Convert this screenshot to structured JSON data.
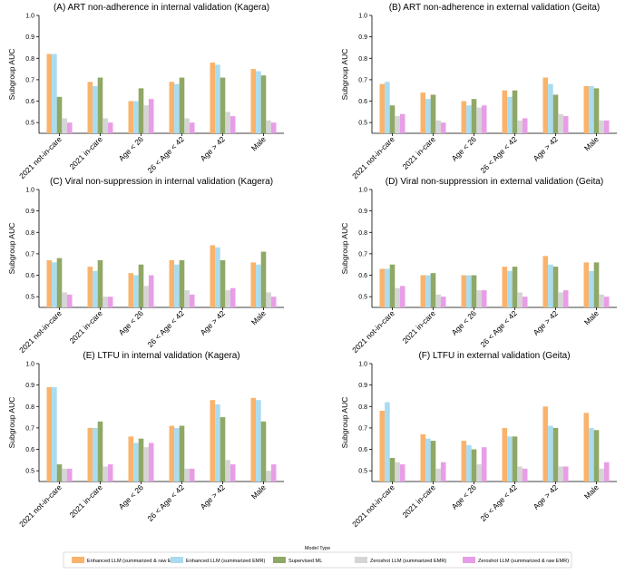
{
  "figure": {
    "legend_title": "Model Type",
    "legend_position": "bottom-center"
  },
  "colors": {
    "enhanced_raw": "#f9b36c",
    "enhanced_summ": "#a9dcf0",
    "supervised": "#8fa866",
    "zeroshot_summ": "#d5d5d5",
    "zeroshot_raw": "#e89ee6"
  },
  "series_meta": [
    {
      "name": "Enhanced LLM (summarized & raw EMR)",
      "color_key": "enhanced_raw"
    },
    {
      "name": "Enhanced LLM (summarized EMR)",
      "color_key": "enhanced_summ"
    },
    {
      "name": "Supervised ML",
      "color_key": "supervised"
    },
    {
      "name": "Zeroshot LLM (summarized EMR)",
      "color_key": "zeroshot_summ"
    },
    {
      "name": "Zeroshot LLM (summarized & raw EMR)",
      "color_key": "zeroshot_raw"
    }
  ],
  "chart_data": [
    {
      "type": "bar",
      "title": "(A) ART non-adherence in internal validation (Kagera)",
      "xlabel": "",
      "ylabel": "Subgroup AUC",
      "ylim": [
        0.45,
        1.0
      ],
      "yticks": [
        0.5,
        0.6,
        0.7,
        0.8,
        0.9,
        1.0
      ],
      "yticklabels": [
        "0.5",
        "0.6",
        "0.7",
        "0.8",
        "0.9",
        "1.0"
      ],
      "categories": [
        "2021 not-in-care",
        "2021 in-care",
        "Age < 26",
        "26 < Age < 42",
        "Age > 42",
        "Male"
      ],
      "series": [
        {
          "name": "Enhanced LLM (summarized & raw EMR)",
          "values": [
            0.82,
            0.69,
            0.6,
            0.69,
            0.78,
            0.75
          ]
        },
        {
          "name": "Enhanced LLM (summarized EMR)",
          "values": [
            0.82,
            0.67,
            0.6,
            0.68,
            0.77,
            0.74
          ]
        },
        {
          "name": "Supervised ML",
          "values": [
            0.62,
            0.71,
            0.66,
            0.71,
            0.71,
            0.72
          ]
        },
        {
          "name": "Zeroshot LLM (summarized EMR)",
          "values": [
            0.52,
            0.52,
            0.58,
            0.52,
            0.55,
            0.51
          ]
        },
        {
          "name": "Zeroshot LLM (summarized & raw EMR)",
          "values": [
            0.5,
            0.5,
            0.61,
            0.5,
            0.53,
            0.5
          ]
        }
      ]
    },
    {
      "type": "bar",
      "title": "(B) ART non-adherence in external validation (Geita)",
      "xlabel": "",
      "ylabel": "Subgroup AUC",
      "ylim": [
        0.45,
        1.0
      ],
      "yticks": [
        0.5,
        0.6,
        0.7,
        0.8,
        0.9,
        1.0
      ],
      "yticklabels": [
        "0.5",
        "0.6",
        "0.7",
        "0.8",
        "0.9",
        "1.0"
      ],
      "categories": [
        "2021 not-in-care",
        "2021 in-care",
        "Age < 26",
        "26 < Age < 42",
        "Age > 42",
        "Male"
      ],
      "series": [
        {
          "name": "Enhanced LLM (summarized & raw EMR)",
          "values": [
            0.68,
            0.64,
            0.6,
            0.65,
            0.71,
            0.67
          ]
        },
        {
          "name": "Enhanced LLM (summarized EMR)",
          "values": [
            0.69,
            0.61,
            0.58,
            0.62,
            0.68,
            0.67
          ]
        },
        {
          "name": "Supervised ML",
          "values": [
            0.58,
            0.63,
            0.61,
            0.65,
            0.63,
            0.66
          ]
        },
        {
          "name": "Zeroshot LLM (summarized EMR)",
          "values": [
            0.53,
            0.51,
            0.57,
            0.51,
            0.54,
            0.51
          ]
        },
        {
          "name": "Zeroshot LLM (summarized & raw EMR)",
          "values": [
            0.54,
            0.5,
            0.58,
            0.52,
            0.53,
            0.51
          ]
        }
      ]
    },
    {
      "type": "bar",
      "title": "(C) Viral non-suppression in internal validation (Kagera)",
      "xlabel": "",
      "ylabel": "Subgroup AUC",
      "ylim": [
        0.45,
        1.0
      ],
      "yticks": [
        0.5,
        0.6,
        0.7,
        0.8,
        0.9,
        1.0
      ],
      "yticklabels": [
        "0.5",
        "0.6",
        "0.7",
        "0.8",
        "0.9",
        "1.0"
      ],
      "categories": [
        "2021 not-in-care",
        "2021 in-care",
        "Age < 26",
        "26 < Age < 42",
        "Age > 42",
        "Male"
      ],
      "series": [
        {
          "name": "Enhanced LLM (summarized & raw EMR)",
          "values": [
            0.67,
            0.64,
            0.61,
            0.67,
            0.74,
            0.66
          ]
        },
        {
          "name": "Enhanced LLM (summarized EMR)",
          "values": [
            0.66,
            0.62,
            0.6,
            0.65,
            0.73,
            0.65
          ]
        },
        {
          "name": "Supervised ML",
          "values": [
            0.68,
            0.67,
            0.65,
            0.67,
            0.67,
            0.71
          ]
        },
        {
          "name": "Zeroshot LLM (summarized EMR)",
          "values": [
            0.52,
            0.5,
            0.55,
            0.53,
            0.53,
            0.52
          ]
        },
        {
          "name": "Zeroshot LLM (summarized & raw EMR)",
          "values": [
            0.51,
            0.5,
            0.6,
            0.51,
            0.54,
            0.5
          ]
        }
      ]
    },
    {
      "type": "bar",
      "title": "(D) Viral non-suppression in external validation (Geita)",
      "xlabel": "",
      "ylabel": "Subgroup AUC",
      "ylim": [
        0.45,
        1.0
      ],
      "yticks": [
        0.5,
        0.6,
        0.7,
        0.8,
        0.9,
        1.0
      ],
      "yticklabels": [
        "0.5",
        "0.6",
        "0.7",
        "0.8",
        "0.9",
        "1.0"
      ],
      "categories": [
        "2021 not-in-care",
        "2021 in-care",
        "Age < 26",
        "26 < Age < 42",
        "Age > 42",
        "Male"
      ],
      "series": [
        {
          "name": "Enhanced LLM (summarized & raw EMR)",
          "values": [
            0.63,
            0.6,
            0.6,
            0.64,
            0.69,
            0.66
          ]
        },
        {
          "name": "Enhanced LLM (summarized EMR)",
          "values": [
            0.63,
            0.6,
            0.6,
            0.62,
            0.65,
            0.62
          ]
        },
        {
          "name": "Supervised ML",
          "values": [
            0.65,
            0.61,
            0.6,
            0.64,
            0.64,
            0.66
          ]
        },
        {
          "name": "Zeroshot LLM (summarized EMR)",
          "values": [
            0.54,
            0.51,
            0.53,
            0.52,
            0.52,
            0.51
          ]
        },
        {
          "name": "Zeroshot LLM (summarized & raw EMR)",
          "values": [
            0.55,
            0.5,
            0.53,
            0.5,
            0.53,
            0.5
          ]
        }
      ]
    },
    {
      "type": "bar",
      "title": "(E) LTFU in internal validation (Kagera)",
      "xlabel": "",
      "ylabel": "Subgroup AUC",
      "ylim": [
        0.45,
        1.0
      ],
      "yticks": [
        0.5,
        0.6,
        0.7,
        0.8,
        0.9,
        1.0
      ],
      "yticklabels": [
        "0.5",
        "0.6",
        "0.7",
        "0.8",
        "0.9",
        "1.0"
      ],
      "categories": [
        "2021 not-in-care",
        "2021 in-care",
        "Age < 26",
        "26 < Age < 42",
        "Age > 42",
        "Male"
      ],
      "series": [
        {
          "name": "Enhanced LLM (summarized & raw EMR)",
          "values": [
            0.89,
            0.7,
            0.66,
            0.71,
            0.83,
            0.84
          ]
        },
        {
          "name": "Enhanced LLM (summarized EMR)",
          "values": [
            0.89,
            0.7,
            0.63,
            0.7,
            0.81,
            0.83
          ]
        },
        {
          "name": "Supervised ML",
          "values": [
            0.53,
            0.73,
            0.65,
            0.71,
            0.75,
            0.73
          ]
        },
        {
          "name": "Zeroshot LLM (summarized EMR)",
          "values": [
            0.51,
            0.52,
            0.61,
            0.51,
            0.55,
            0.5
          ]
        },
        {
          "name": "Zeroshot LLM (summarized & raw EMR)",
          "values": [
            0.51,
            0.53,
            0.63,
            0.51,
            0.53,
            0.53
          ]
        }
      ]
    },
    {
      "type": "bar",
      "title": "(F) LTFU in external validation (Geita)",
      "xlabel": "",
      "ylabel": "Subgroup AUC",
      "ylim": [
        0.45,
        1.0
      ],
      "yticks": [
        0.5,
        0.6,
        0.7,
        0.8,
        0.9,
        1.0
      ],
      "yticklabels": [
        "0.5",
        "0.6",
        "0.7",
        "0.8",
        "0.9",
        "1.0"
      ],
      "categories": [
        "2021 not-in-care",
        "2021 in-care",
        "Age < 26",
        "26 < Age < 42",
        "Age > 42",
        "Male"
      ],
      "series": [
        {
          "name": "Enhanced LLM (summarized & raw EMR)",
          "values": [
            0.78,
            0.67,
            0.64,
            0.7,
            0.8,
            0.77
          ]
        },
        {
          "name": "Enhanced LLM (summarized EMR)",
          "values": [
            0.82,
            0.65,
            0.62,
            0.66,
            0.71,
            0.7
          ]
        },
        {
          "name": "Supervised ML",
          "values": [
            0.56,
            0.64,
            0.6,
            0.66,
            0.7,
            0.69
          ]
        },
        {
          "name": "Zeroshot LLM (summarized EMR)",
          "values": [
            0.54,
            0.51,
            0.53,
            0.52,
            0.52,
            0.51
          ]
        },
        {
          "name": "Zeroshot LLM (summarized & raw EMR)",
          "values": [
            0.53,
            0.54,
            0.61,
            0.51,
            0.52,
            0.54
          ]
        }
      ]
    }
  ]
}
